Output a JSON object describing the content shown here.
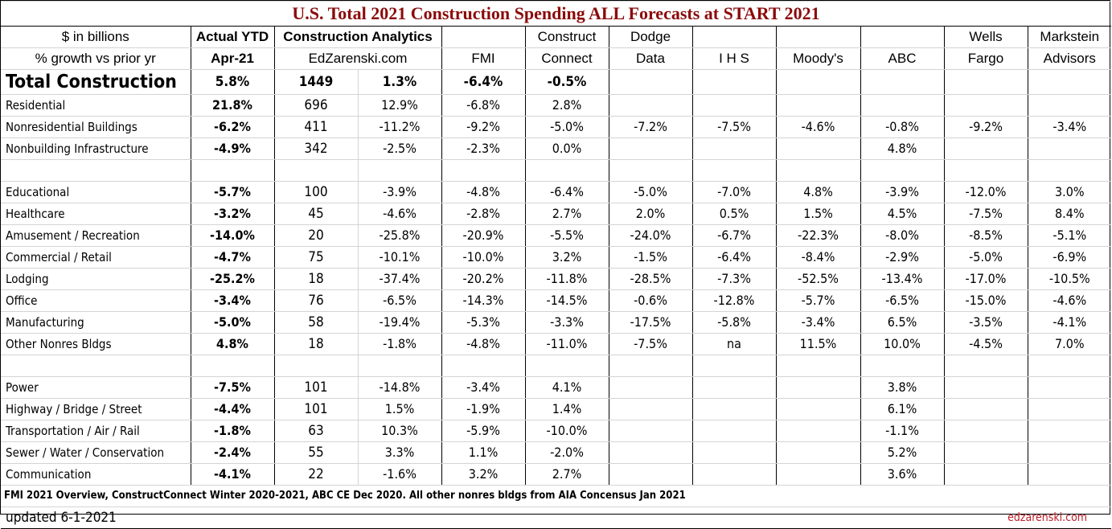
{
  "title": "U.S. Total 2021 Construction Spending ALL Forecasts at START 2021",
  "header_row1": [
    "$ in billions",
    "Actual YTD",
    "Construction Analytics",
    "",
    "Construct",
    "Dodge",
    "",
    "",
    "",
    "Wells",
    "Markstein"
  ],
  "header_row2": [
    "% growth vs prior yr",
    "Apr-21",
    "EdZarenski.com",
    "FMI",
    "Connect",
    "Data",
    "I H S",
    "Moody's",
    "ABC",
    "Fargo",
    "Advisors"
  ],
  "rows": [
    {
      "label": "Total Construction",
      "ytd": "5.8%",
      "ca_bil": "1449",
      "ca_pct": "1.3%",
      "fmi": "-6.4%",
      "cc": "-0.5%",
      "dodge": "",
      "ihs": "",
      "moodys": "",
      "abc": "",
      "wells": "",
      "markstein": ""
    },
    {
      "label": "Residential",
      "ytd": "21.8%",
      "ca_bil": "696",
      "ca_pct": "12.9%",
      "fmi": "-6.8%",
      "cc": "2.8%",
      "dodge": "",
      "ihs": "",
      "moodys": "",
      "abc": "",
      "wells": "",
      "markstein": ""
    },
    {
      "label": "Nonresidential Buildings",
      "ytd": "-6.2%",
      "ca_bil": "411",
      "ca_pct": "-11.2%",
      "fmi": "-9.2%",
      "cc": "-5.0%",
      "dodge": "-7.2%",
      "ihs": "-7.5%",
      "moodys": "-4.6%",
      "abc": "-0.8%",
      "wells": "-9.2%",
      "markstein": "-3.4%"
    },
    {
      "label": "Nonbuilding Infrastructure",
      "ytd": "-4.9%",
      "ca_bil": "342",
      "ca_pct": "-2.5%",
      "fmi": "-2.3%",
      "cc": "0.0%",
      "dodge": "",
      "ihs": "",
      "moodys": "",
      "abc": "4.8%",
      "wells": "",
      "markstein": ""
    },
    {
      "label": "",
      "ytd": "",
      "ca_bil": "",
      "ca_pct": "",
      "fmi": "",
      "cc": "",
      "dodge": "",
      "ihs": "",
      "moodys": "",
      "abc": "",
      "wells": "",
      "markstein": ""
    },
    {
      "label": "Educational",
      "ytd": "-5.7%",
      "ca_bil": "100",
      "ca_pct": "-3.9%",
      "fmi": "-4.8%",
      "cc": "-6.4%",
      "dodge": "-5.0%",
      "ihs": "-7.0%",
      "moodys": "4.8%",
      "abc": "-3.9%",
      "wells": "-12.0%",
      "markstein": "3.0%"
    },
    {
      "label": "Healthcare",
      "ytd": "-3.2%",
      "ca_bil": "45",
      "ca_pct": "-4.6%",
      "fmi": "-2.8%",
      "cc": "2.7%",
      "dodge": "2.0%",
      "ihs": "0.5%",
      "moodys": "1.5%",
      "abc": "4.5%",
      "wells": "-7.5%",
      "markstein": "8.4%"
    },
    {
      "label": "Amusement / Recreation",
      "ytd": "-14.0%",
      "ca_bil": "20",
      "ca_pct": "-25.8%",
      "fmi": "-20.9%",
      "cc": "-5.5%",
      "dodge": "-24.0%",
      "ihs": "-6.7%",
      "moodys": "-22.3%",
      "abc": "-8.0%",
      "wells": "-8.5%",
      "markstein": "-5.1%"
    },
    {
      "label": "Commercial / Retail",
      "ytd": "-4.7%",
      "ca_bil": "75",
      "ca_pct": "-10.1%",
      "fmi": "-10.0%",
      "cc": "3.2%",
      "dodge": "-1.5%",
      "ihs": "-6.4%",
      "moodys": "-8.4%",
      "abc": "-2.9%",
      "wells": "-5.0%",
      "markstein": "-6.9%"
    },
    {
      "label": "Lodging",
      "ytd": "-25.2%",
      "ca_bil": "18",
      "ca_pct": "-37.4%",
      "fmi": "-20.2%",
      "cc": "-11.8%",
      "dodge": "-28.5%",
      "ihs": "-7.3%",
      "moodys": "-52.5%",
      "abc": "-13.4%",
      "wells": "-17.0%",
      "markstein": "-10.5%"
    },
    {
      "label": "Office",
      "ytd": "-3.4%",
      "ca_bil": "76",
      "ca_pct": "-6.5%",
      "fmi": "-14.3%",
      "cc": "-14.5%",
      "dodge": "-0.6%",
      "ihs": "-12.8%",
      "moodys": "-5.7%",
      "abc": "-6.5%",
      "wells": "-15.0%",
      "markstein": "-4.6%"
    },
    {
      "label": "Manufacturing",
      "ytd": "-5.0%",
      "ca_bil": "58",
      "ca_pct": "-19.4%",
      "fmi": "-5.3%",
      "cc": "-3.3%",
      "dodge": "-17.5%",
      "ihs": "-5.8%",
      "moodys": "-3.4%",
      "abc": "6.5%",
      "wells": "-3.5%",
      "markstein": "-4.1%"
    },
    {
      "label": "Other Nonres Bldgs",
      "ytd": "4.8%",
      "ca_bil": "18",
      "ca_pct": "-1.8%",
      "fmi": "-4.8%",
      "cc": "-11.0%",
      "dodge": "-7.5%",
      "ihs": "na",
      "moodys": "11.5%",
      "abc": "10.0%",
      "wells": "-4.5%",
      "markstein": "7.0%"
    },
    {
      "label": "",
      "ytd": "",
      "ca_bil": "",
      "ca_pct": "",
      "fmi": "",
      "cc": "",
      "dodge": "",
      "ihs": "",
      "moodys": "",
      "abc": "",
      "wells": "",
      "markstein": ""
    },
    {
      "label": "Power",
      "ytd": "-7.5%",
      "ca_bil": "101",
      "ca_pct": "-14.8%",
      "fmi": "-3.4%",
      "cc": "4.1%",
      "dodge": "",
      "ihs": "",
      "moodys": "",
      "abc": "3.8%",
      "wells": "",
      "markstein": ""
    },
    {
      "label": "Highway / Bridge / Street",
      "ytd": "-4.4%",
      "ca_bil": "101",
      "ca_pct": "1.5%",
      "fmi": "-1.9%",
      "cc": "1.4%",
      "dodge": "",
      "ihs": "",
      "moodys": "",
      "abc": "6.1%",
      "wells": "",
      "markstein": ""
    },
    {
      "label": "Transportation / Air / Rail",
      "ytd": "-1.8%",
      "ca_bil": "63",
      "ca_pct": "10.3%",
      "fmi": "-5.9%",
      "cc": "-10.0%",
      "dodge": "",
      "ihs": "",
      "moodys": "",
      "abc": "-1.1%",
      "wells": "",
      "markstein": ""
    },
    {
      "label": "Sewer / Water / Conservation",
      "ytd": "-2.4%",
      "ca_bil": "55",
      "ca_pct": "3.3%",
      "fmi": "1.1%",
      "cc": "-2.0%",
      "dodge": "",
      "ihs": "",
      "moodys": "",
      "abc": "5.2%",
      "wells": "",
      "markstein": ""
    },
    {
      "label": "Communication",
      "ytd": "-4.1%",
      "ca_bil": "22",
      "ca_pct": "-1.6%",
      "fmi": "3.2%",
      "cc": "2.7%",
      "dodge": "",
      "ihs": "",
      "moodys": "",
      "abc": "3.6%",
      "wells": "",
      "markstein": ""
    }
  ],
  "footnote": "FMI 2021 Overview, ConstructConnect Winter 2020-2021, ABC CE Dec 2020. All other nonres bldgs from AIA Concensus Jan 2021",
  "updated": "updated 6-1-2021",
  "site": "edzarenski.com",
  "colors": {
    "title": "#8b0a0a",
    "site": "#c0202a"
  }
}
